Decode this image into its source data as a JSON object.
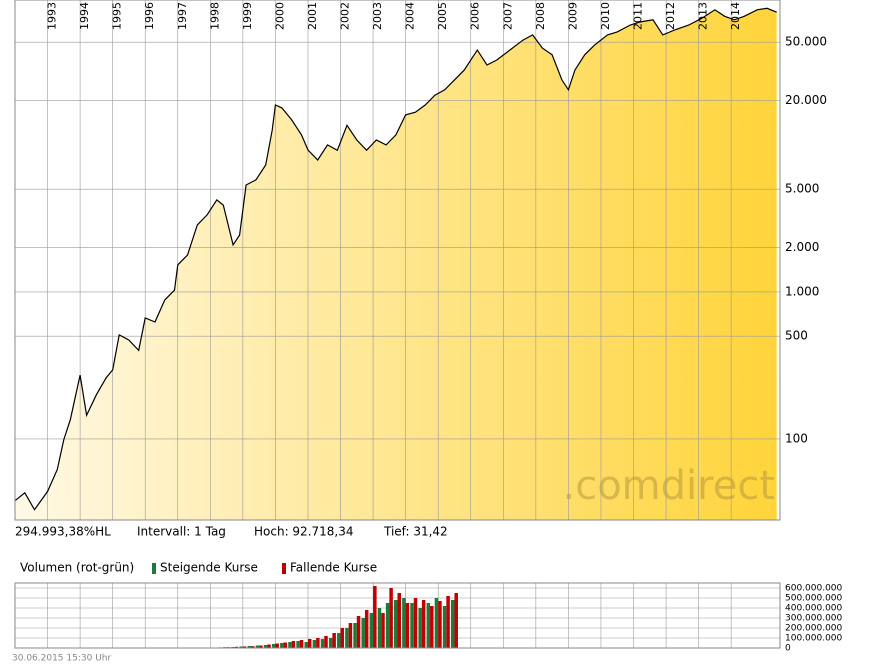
{
  "chart_data": [
    {
      "type": "line",
      "log_scale": true,
      "grid": true,
      "color": "#000000",
      "area_colors": [
        "#fff9e6",
        "#ffd43a"
      ],
      "watermark": ".comdirect",
      "xlim": [
        1992,
        2015.5
      ],
      "xticks": [
        1993,
        1994,
        1995,
        1996,
        1997,
        1998,
        1999,
        2000,
        2001,
        2002,
        2003,
        2004,
        2005,
        2006,
        2007,
        2008,
        2009,
        2010,
        2011,
        2012,
        2013,
        2014
      ],
      "ylim": [
        28.1,
        96800
      ],
      "yticks": [
        100,
        500,
        {
          "value": 1000,
          "label": "1.000"
        },
        {
          "value": 2000,
          "label": "2.000"
        },
        {
          "value": 5000,
          "label": "5.000"
        },
        {
          "value": 20000,
          "label": "20.000"
        },
        {
          "value": 50000,
          "label": "50.000"
        }
      ],
      "x": [
        1992.0,
        1992.3,
        1992.6,
        1993.0,
        1993.3,
        1993.5,
        1993.7,
        1994.0,
        1994.2,
        1994.5,
        1994.8,
        1995.0,
        1995.2,
        1995.5,
        1995.8,
        1996.0,
        1996.3,
        1996.6,
        1996.9,
        1997.0,
        1997.3,
        1997.6,
        1997.9,
        1998.2,
        1998.4,
        1998.7,
        1998.9,
        1999.1,
        1999.4,
        1999.7,
        1999.9,
        2000.0,
        2000.2,
        2000.5,
        2000.8,
        2001.0,
        2001.3,
        2001.6,
        2001.9,
        2002.2,
        2002.5,
        2002.8,
        2003.1,
        2003.4,
        2003.7,
        2004.0,
        2004.3,
        2004.6,
        2004.9,
        2005.2,
        2005.5,
        2005.8,
        2006.2,
        2006.5,
        2006.8,
        2007.2,
        2007.6,
        2007.9,
        2008.2,
        2008.5,
        2008.8,
        2009.0,
        2009.2,
        2009.5,
        2009.8,
        2010.2,
        2010.5,
        2010.9,
        2011.2,
        2011.6,
        2011.9,
        2012.3,
        2012.7,
        2013.1,
        2013.5,
        2013.8,
        2014.1,
        2014.4,
        2014.8,
        2015.1,
        2015.4
      ],
      "values": [
        38,
        43,
        33,
        44,
        62,
        99,
        135,
        272,
        145,
        200,
        260,
        295,
        510,
        470,
        400,
        665,
        625,
        880,
        1030,
        1530,
        1780,
        2860,
        3340,
        4230,
        3900,
        2090,
        2440,
        5340,
        5780,
        7300,
        12600,
        18700,
        17850,
        14800,
        11700,
        9230,
        7900,
        10000,
        9200,
        13600,
        10800,
        9200,
        10800,
        10000,
        11700,
        16000,
        16700,
        18700,
        21800,
        23700,
        27700,
        32300,
        44200,
        35000,
        37800,
        44200,
        51600,
        56000,
        45600,
        41000,
        27700,
        23700,
        32300,
        41000,
        47700,
        56000,
        58700,
        65400,
        68600,
        71000,
        56000,
        61000,
        65400,
        72800,
        83000,
        75000,
        71000,
        75000,
        83000,
        85000,
        80000
      ]
    },
    {
      "type": "bar",
      "title": "Volumen (rot-grün)",
      "grid": true,
      "xlim": [
        1992,
        2015.5
      ],
      "xticks": [
        1993,
        1994,
        1995,
        1996,
        1997,
        1998,
        1999,
        2000,
        2001,
        2002,
        2003,
        2004,
        2005,
        2006,
        2007,
        2008,
        2009,
        2010,
        2011,
        2012,
        2013,
        2014
      ],
      "ylim": [
        0,
        650000000
      ],
      "yticks": [
        0,
        {
          "value": 100000000,
          "label": "100.000.000"
        },
        {
          "value": 200000000,
          "label": "200.000.000"
        },
        {
          "value": 300000000,
          "label": "300.000.000"
        },
        {
          "value": 400000000,
          "label": "400.000.000"
        },
        {
          "value": 500000000,
          "label": "500.000.000"
        },
        {
          "value": 600000000,
          "label": "600.000.000"
        }
      ],
      "x": [
        1998.0,
        1998.25,
        1998.5,
        1998.75,
        1999.0,
        1999.25,
        1999.5,
        1999.75,
        2000.0,
        2000.25,
        2000.5,
        2000.75,
        2001.0,
        2001.25,
        2001.5,
        2001.75,
        2002.0,
        2002.25,
        2002.5,
        2002.75,
        2003.0,
        2003.25,
        2003.5,
        2003.75,
        2004.0,
        2004.25,
        2004.5,
        2004.75,
        2005.0,
        2005.25,
        2005.5
      ],
      "series": [
        {
          "name": "Steigende Kurse",
          "color": "#1e7a3c",
          "values": [
            5000000,
            5000000,
            8000000,
            10000000,
            15000000,
            20000000,
            25000000,
            30000000,
            40000000,
            50000000,
            60000000,
            70000000,
            60000000,
            80000000,
            90000000,
            100000000,
            150000000,
            200000000,
            250000000,
            300000000,
            350000000,
            400000000,
            450000000,
            480000000,
            500000000,
            450000000,
            400000000,
            450000000,
            500000000,
            420000000,
            480000000
          ]
        },
        {
          "name": "Fallende Kurse",
          "color": "#c00000",
          "values": [
            5000000,
            6000000,
            8000000,
            12000000,
            15000000,
            18000000,
            25000000,
            35000000,
            45000000,
            55000000,
            70000000,
            80000000,
            90000000,
            100000000,
            120000000,
            150000000,
            200000000,
            250000000,
            320000000,
            380000000,
            620000000,
            350000000,
            600000000,
            550000000,
            450000000,
            500000000,
            480000000,
            420000000,
            470000000,
            520000000,
            550000000
          ]
        }
      ]
    }
  ],
  "info": {
    "performance": "294.993,38%HL",
    "interval": "Intervall: 1 Tag",
    "high": "Hoch:  92.718,34",
    "low": "Tief:  31,42"
  },
  "timestamp": "30.06.2015 15:30 Uhr"
}
